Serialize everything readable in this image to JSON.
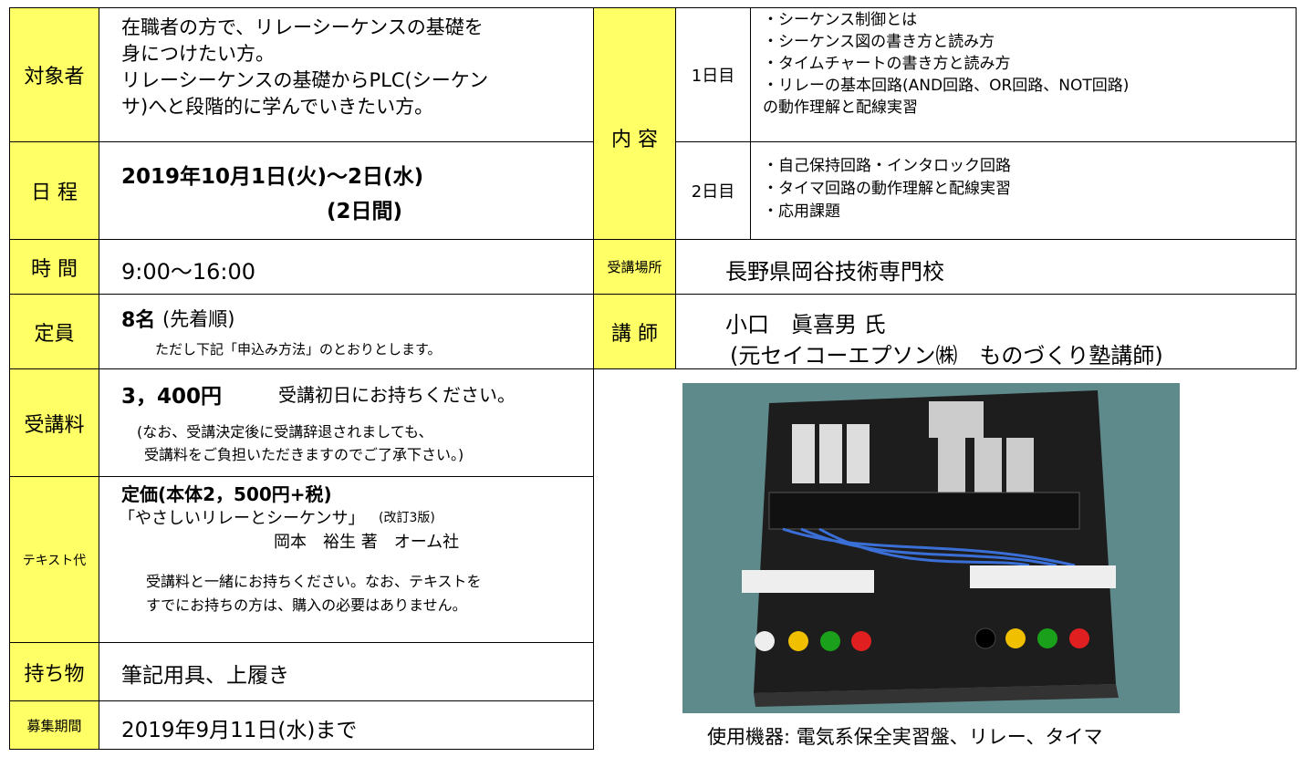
{
  "rows": [
    {
      "label": "対象者",
      "lines": [
        "在職者の方で、リレーシーケンスの基礎を",
        "身につけたい方。",
        "リレーシーケンスの基礎からPLC(シーケン",
        "サ)へと段階的に学んでいきたい方。"
      ]
    },
    {
      "label": "日 程",
      "lines": [
        "2019年10月1日(火)～2日(水)",
        "(2日間)"
      ]
    },
    {
      "label": "時 間",
      "lines": [
        "9:00～16:00"
      ]
    },
    {
      "label": "定員",
      "lines": [
        "8名",
        "(先着順)",
        "ただし下記「申込み方法」のとおりとします。"
      ]
    },
    {
      "label": "受講料",
      "lines": [
        "3，400円",
        "受講初日にお持ちください。",
        "(なお、受講決定後に受講辞退されましても、",
        "受講料をご負担いただきますのでご了承下さい。)"
      ]
    },
    {
      "label": "テキスト代",
      "lines": [
        "定価(本体2，500円+税)",
        "「やさしいリレーとシーケンサ」",
        "(改訂3版)",
        "岡本　裕生 著　オーム社",
        "受講料と一緒にお持ちください。なお、テキストを",
        "すでにお持ちの方は、購入の必要はありません。"
      ]
    },
    {
      "label": "持ち物",
      "lines": [
        "筆記用具、上履き"
      ]
    },
    {
      "label": "募集期間",
      "lines": [
        "2019年9月11日(水)まで"
      ]
    }
  ],
  "content": {
    "label": "内 容",
    "days": [
      {
        "label": "1日目",
        "items": [
          "・シーケンス制御とは",
          "・シーケンス図の書き方と読み方",
          "・タイムチャートの書き方と読み方",
          "・リレーの基本回路(AND回路、OR回路、NOT回路)",
          "の動作理解と配線実習"
        ]
      },
      {
        "label": "2日目",
        "items": [
          "・自己保持回路・インタロック回路",
          "・タイマ回路の動作理解と配線実習",
          "・応用課題"
        ]
      }
    ]
  },
  "venue": {
    "label": "受講場所",
    "text": "長野県岡谷技術専門校"
  },
  "instructor": {
    "label": "講 師",
    "lines": [
      "小口　眞喜男 氏",
      "(元セイコーエプソン㈱　ものづくり塾講師)"
    ]
  },
  "photo": {
    "caption": "使用機器:  電気系保全実習盤、リレー、タイマ"
  }
}
